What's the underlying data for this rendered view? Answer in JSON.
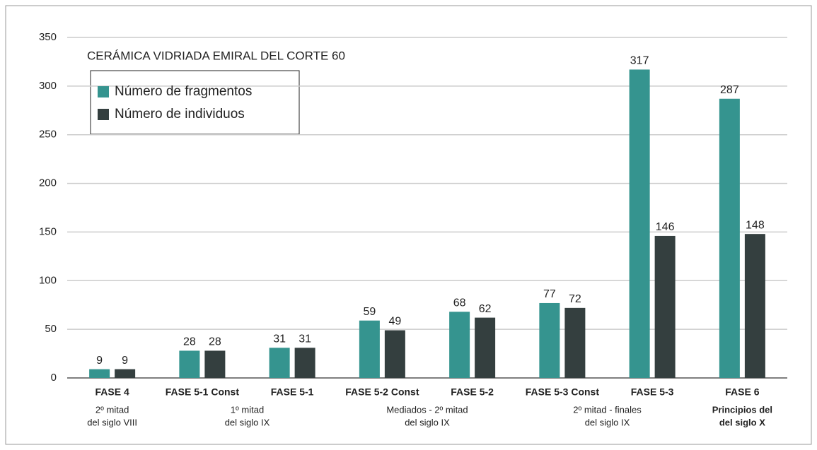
{
  "chart_data": {
    "type": "bar",
    "title": "CERÁMICA VIDRIADA EMIRAL DEL CORTE 60",
    "categories": [
      "FASE 4",
      "FASE 5-1 Const",
      "FASE 5-1",
      "FASE 5-2 Const",
      "FASE 5-2",
      "FASE 5-3 Const",
      "FASE 5-3",
      "FASE 6"
    ],
    "series": [
      {
        "name": "Número de fragmentos",
        "color": "#35948f",
        "values": [
          9,
          28,
          31,
          59,
          68,
          77,
          317,
          287
        ]
      },
      {
        "name": "Número de individuos",
        "color": "#343f3f",
        "values": [
          9,
          28,
          31,
          49,
          62,
          72,
          146,
          148
        ]
      }
    ],
    "periods": [
      {
        "lines": [
          "2º mitad",
          "del siglo VIII"
        ],
        "bold": false
      },
      {
        "lines": [
          "1º mitad",
          "del siglo IX"
        ],
        "bold": false
      },
      {
        "lines": [
          "Mediados - 2º mitad",
          "del siglo IX"
        ],
        "bold": false
      },
      {
        "lines": [
          "2º mitad - finales",
          "del siglo IX"
        ],
        "bold": false
      },
      {
        "lines": [
          "Principios del",
          "del siglo X"
        ],
        "bold": true
      }
    ],
    "ylim": [
      0,
      350
    ],
    "yticks": [
      0,
      50,
      100,
      150,
      200,
      250,
      300,
      350
    ],
    "grid": true
  }
}
